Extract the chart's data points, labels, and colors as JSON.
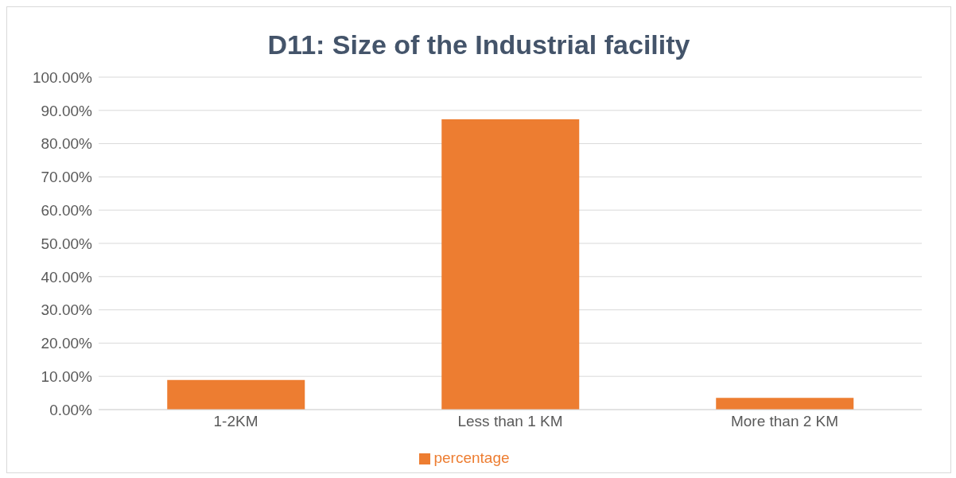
{
  "chart_data": {
    "type": "bar",
    "title": "D11: Size of the Industrial facility",
    "categories": [
      "1-2KM",
      "Less than 1 KM",
      "More than 2 KM"
    ],
    "series": [
      {
        "name": "percentage",
        "color": "#ed7d31",
        "values": [
          8.9,
          87.3,
          3.5
        ]
      }
    ],
    "ylim": [
      0,
      100
    ],
    "yticks": [
      {
        "value": 0,
        "label": "0.00%"
      },
      {
        "value": 10,
        "label": "10.00%"
      },
      {
        "value": 20,
        "label": "20.00%"
      },
      {
        "value": 30,
        "label": "30.00%"
      },
      {
        "value": 40,
        "label": "40.00%"
      },
      {
        "value": 50,
        "label": "50.00%"
      },
      {
        "value": 60,
        "label": "60.00%"
      },
      {
        "value": 70,
        "label": "70.00%"
      },
      {
        "value": 80,
        "label": "80.00%"
      },
      {
        "value": 90,
        "label": "90.00%"
      },
      {
        "value": 100,
        "label": "100.00%"
      }
    ],
    "grid": "y",
    "legend": "bottom"
  }
}
